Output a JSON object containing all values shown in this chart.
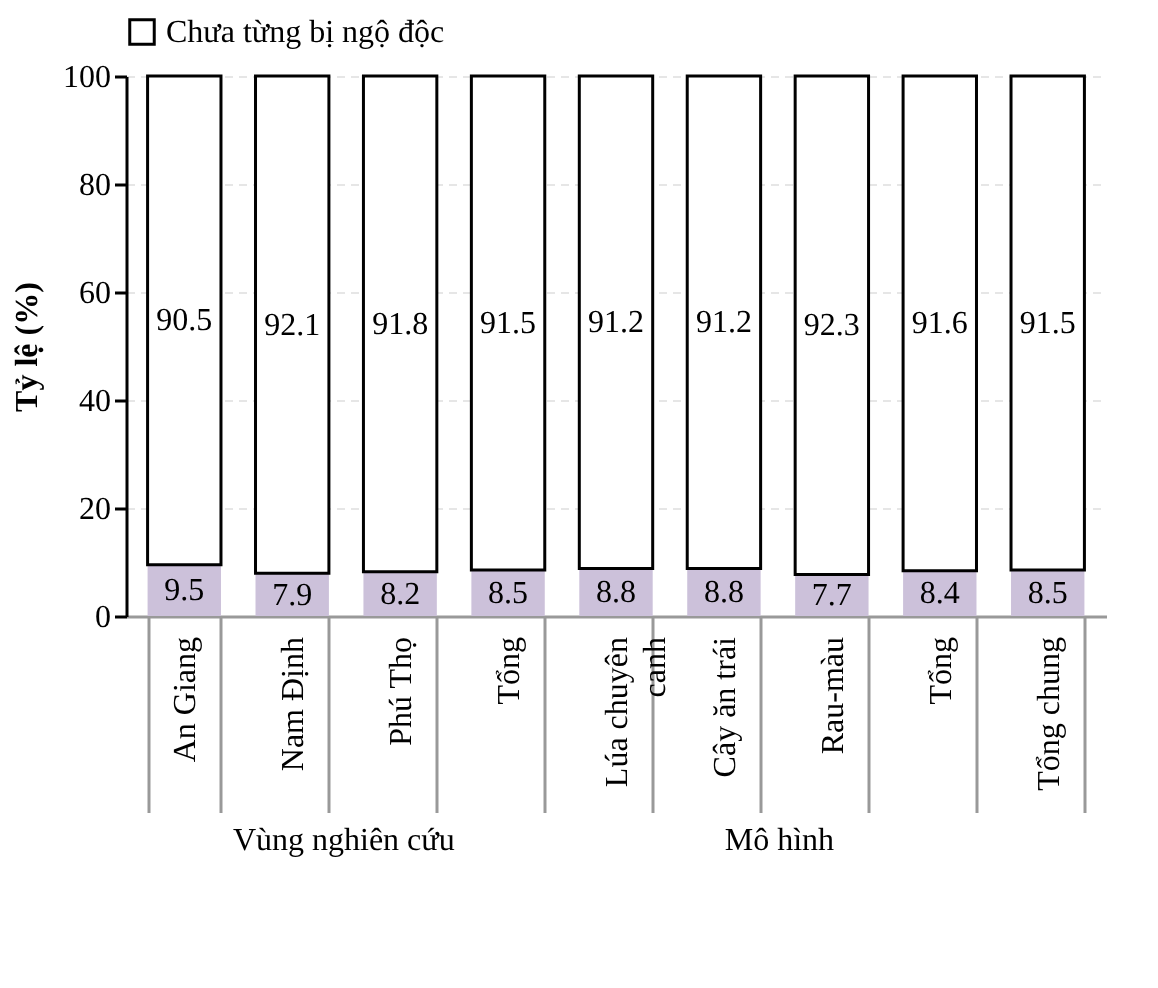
{
  "chart_data": {
    "type": "bar",
    "stacked": true,
    "ylabel": "Tỷ lệ (%)",
    "categories": [
      "An Giang",
      "Nam Định",
      "Phú Thọ",
      "Tổng",
      "Lúa chuyên canh",
      "Cây ăn trái",
      "Rau-màu",
      "Tổng",
      "Tổng chung"
    ],
    "series": [
      {
        "color": "#ccc1da",
        "values": [
          9.5,
          7.9,
          8.2,
          8.5,
          8.8,
          8.8,
          7.7,
          8.4,
          8.5
        ]
      },
      {
        "name": "Chưa từng bị ngộ độc",
        "color": "#ffffff",
        "values": [
          90.5,
          92.1,
          91.8,
          91.5,
          91.2,
          91.2,
          92.3,
          91.6,
          91.5
        ]
      }
    ],
    "ylim": [
      0,
      100
    ],
    "yticks": [
      0,
      20,
      40,
      60,
      80,
      100
    ],
    "grid": "y",
    "legend": "top",
    "data_labels": true,
    "annotations": [
      "Vùng nghiên cứu",
      "Mô hình"
    ]
  }
}
